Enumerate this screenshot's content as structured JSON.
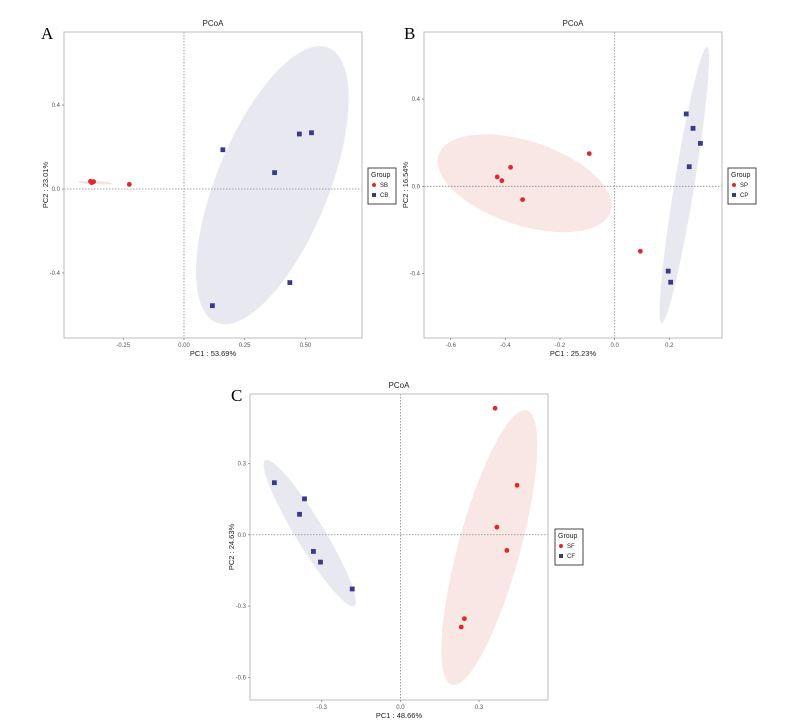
{
  "chart_data": [
    {
      "panel_label": "A",
      "type": "scatter",
      "title": "PCoA",
      "xlabel": "PC1 : 53.69%",
      "ylabel": "PC2 : 23.01%",
      "xlim": [
        -0.494,
        0.733
      ],
      "ylim": [
        -0.71,
        0.748
      ],
      "xticks": [
        {
          "v": -0.25,
          "label": "-0.25"
        },
        {
          "v": 0,
          "label": "0.00"
        },
        {
          "v": 0.25,
          "label": "0.25"
        },
        {
          "v": 0.5,
          "label": "0.50"
        }
      ],
      "yticks": [
        {
          "v": -0.4,
          "label": "-0.4"
        },
        {
          "v": 0,
          "label": "0.0"
        },
        {
          "v": 0.4,
          "label": "0.4"
        }
      ],
      "legend": {
        "title": "Group",
        "position": "right"
      },
      "series": [
        {
          "name": "SB",
          "marker": "circle",
          "color": "#dd2a2a",
          "fill": "#f6dede",
          "points": [
            [
              -0.385,
              0.037
            ],
            [
              -0.378,
              0.032
            ],
            [
              -0.372,
              0.035
            ],
            [
              -0.38,
              0.03
            ],
            [
              -0.225,
              0.022
            ]
          ],
          "ellipse": {
            "center": [
              -0.366,
              0.03
            ],
            "major": [
              0.07,
              -0.003
            ],
            "minor": [
              0,
              0.008
            ]
          }
        },
        {
          "name": "CB",
          "marker": "square",
          "color": "#3a3a8c",
          "fill": "#e6e6f0",
          "points": [
            [
              0.16,
              0.187
            ],
            [
              0.475,
              0.262
            ],
            [
              0.525,
              0.268
            ],
            [
              0.373,
              0.078
            ],
            [
              0.436,
              -0.446
            ],
            [
              0.117,
              -0.556
            ]
          ],
          "ellipse": {
            "center": [
              0.364,
              0.018
            ],
            "major": [
              0.161,
              0.657
            ],
            "minor": [
              0.27,
              0.088
            ]
          }
        }
      ]
    },
    {
      "panel_label": "B",
      "type": "scatter",
      "title": "PCoA",
      "xlabel": "PC1 : 25.23%",
      "ylabel": "PC2 : 16.54%",
      "xlim": [
        -0.698,
        0.393
      ],
      "ylim": [
        -0.696,
        0.708
      ],
      "xticks": [
        {
          "v": -0.6,
          "label": "-0.6"
        },
        {
          "v": -0.4,
          "label": "-0.4"
        },
        {
          "v": -0.2,
          "label": "-0.2"
        },
        {
          "v": 0,
          "label": "0.0"
        },
        {
          "v": 0.2,
          "label": "0.2"
        }
      ],
      "yticks": [
        {
          "v": -0.4,
          "label": "-0.4"
        },
        {
          "v": 0,
          "label": "0.0"
        },
        {
          "v": 0.4,
          "label": "0.4"
        }
      ],
      "legend": {
        "title": "Group",
        "position": "right"
      },
      "series": [
        {
          "name": "SP",
          "marker": "circle",
          "color": "#dd2a2a",
          "fill": "#f7e4e2",
          "points": [
            [
              -0.093,
              0.15
            ],
            [
              -0.381,
              0.087
            ],
            [
              -0.43,
              0.043
            ],
            [
              -0.413,
              0.026
            ],
            [
              -0.337,
              -0.061
            ],
            [
              0.094,
              -0.298
            ]
          ],
          "ellipse": {
            "center": [
              -0.33,
              0.014
            ],
            "major": [
              0.315,
              -0.13
            ],
            "minor": [
              0.048,
              0.183
            ]
          }
        },
        {
          "name": "CP",
          "marker": "square",
          "color": "#3a3a8c",
          "fill": "#e6e6f0",
          "points": [
            [
              0.262,
              0.332
            ],
            [
              0.287,
              0.266
            ],
            [
              0.314,
              0.197
            ],
            [
              0.273,
              0.09
            ],
            [
              0.196,
              -0.389
            ],
            [
              0.205,
              -0.44
            ]
          ],
          "ellipse": {
            "center": [
              0.255,
              0.006
            ],
            "major": [
              0.083,
              0.634
            ],
            "minor": [
              0.036,
              -0.007
            ]
          }
        }
      ]
    },
    {
      "panel_label": "C",
      "type": "scatter",
      "title": "PCoA",
      "xlabel": "PC1 : 48.66%",
      "ylabel": "PC2 : 24.63%",
      "xlim": [
        -0.574,
        0.563
      ],
      "ylim": [
        -0.695,
        0.592
      ],
      "xticks": [
        {
          "v": -0.3,
          "label": "-0.3"
        },
        {
          "v": 0,
          "label": "0.0"
        },
        {
          "v": 0.3,
          "label": "0.3"
        }
      ],
      "yticks": [
        {
          "v": -0.6,
          "label": "-0.6"
        },
        {
          "v": -0.3,
          "label": "-0.3"
        },
        {
          "v": 0,
          "label": "0.0"
        },
        {
          "v": 0.3,
          "label": "0.3"
        }
      ],
      "legend": {
        "title": "Group",
        "position": "right"
      },
      "series": [
        {
          "name": "SF",
          "marker": "circle",
          "color": "#dd2a2a",
          "fill": "#f7e4e2",
          "points": [
            [
              0.361,
              0.532
            ],
            [
              0.445,
              0.208
            ],
            [
              0.368,
              0.032
            ],
            [
              0.406,
              -0.066
            ],
            [
              0.244,
              -0.353
            ],
            [
              0.232,
              -0.388
            ]
          ],
          "ellipse": {
            "center": [
              0.339,
              -0.054
            ],
            "major": [
              0.143,
              0.578
            ],
            "minor": [
              0.114,
              -0.034
            ]
          }
        },
        {
          "name": "CF",
          "marker": "square",
          "color": "#3a3a8c",
          "fill": "#e6e6f0",
          "points": [
            [
              -0.481,
              0.219
            ],
            [
              -0.366,
              0.151
            ],
            [
              -0.385,
              0.086
            ],
            [
              -0.332,
              -0.07
            ],
            [
              -0.305,
              -0.115
            ],
            [
              -0.184,
              -0.228
            ]
          ],
          "ellipse": {
            "center": [
              -0.346,
              0.007
            ],
            "major": [
              0.17,
              -0.307
            ],
            "minor": [
              0.046,
              0.031
            ]
          }
        }
      ]
    }
  ]
}
